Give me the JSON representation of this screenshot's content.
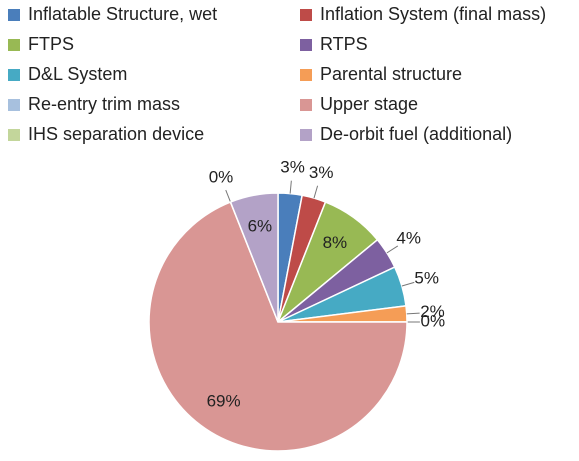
{
  "chart_data": {
    "type": "pie",
    "categories": [
      "Inflatable Structure, wet",
      "Inflation System (final mass)",
      "FTPS",
      "RTPS",
      "D&L System",
      "Parental structure",
      "Re-entry trim mass",
      "Upper stage",
      "IHS separation device",
      "De-orbit fuel (additional)"
    ],
    "values": [
      3,
      3,
      8,
      4,
      5,
      2,
      0,
      69,
      0,
      6
    ],
    "value_labels": [
      "3%",
      "3%",
      "8%",
      "4%",
      "5%",
      "2%",
      "0%",
      "69%",
      "0%",
      "6%"
    ],
    "colors": [
      "#4a7ebb",
      "#be4b48",
      "#98b954",
      "#7d60a0",
      "#46aac4",
      "#f59d56",
      "#a7c0de",
      "#d99694",
      "#c3d69b",
      "#b3a2c7"
    ]
  }
}
